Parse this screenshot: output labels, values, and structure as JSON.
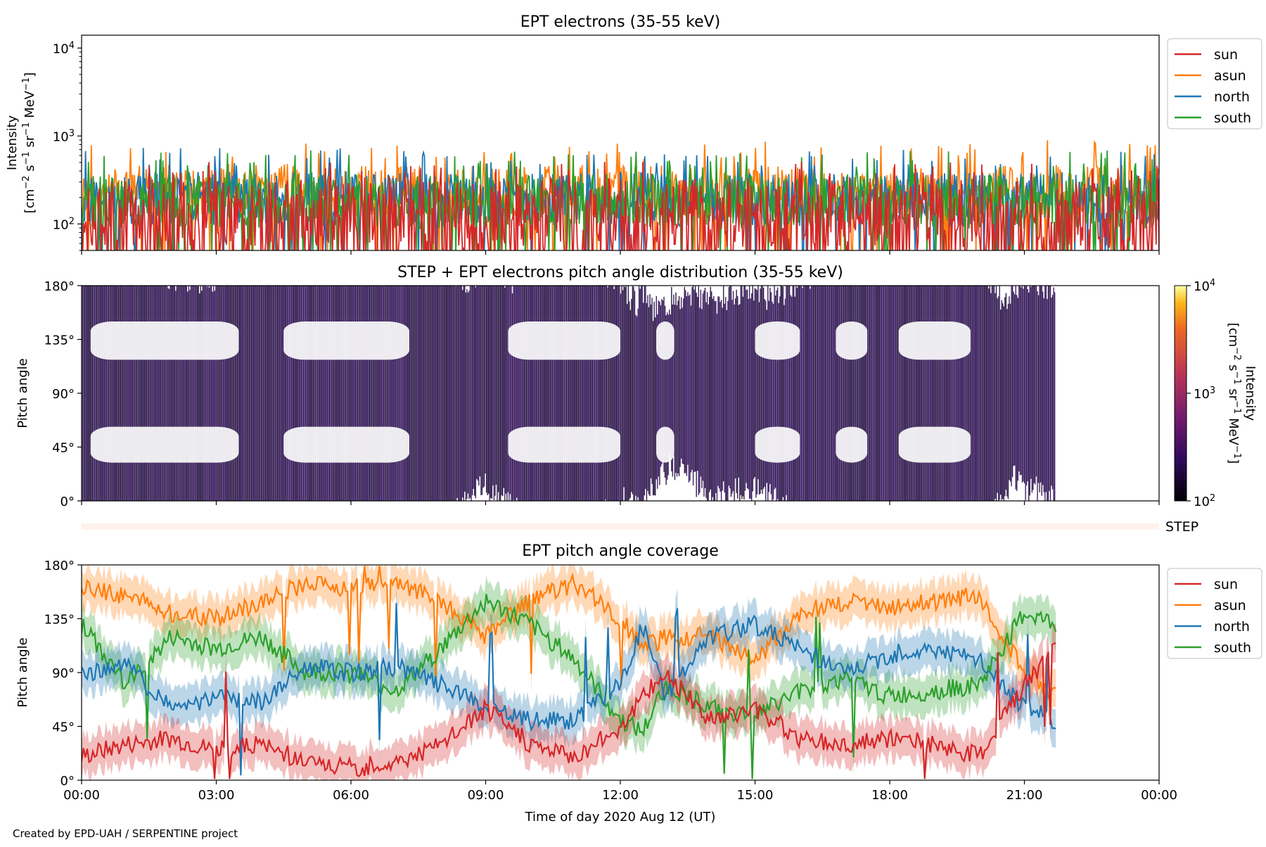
{
  "colors": {
    "sun": "#d62728",
    "asun": "#ff7f0e",
    "north": "#1f77b4",
    "south": "#2ca02c",
    "pad_fill": "#2b0a55",
    "step_bar": "#fff2ec"
  },
  "legend": [
    "sun",
    "asun",
    "north",
    "south"
  ],
  "xlabel": "Time of day 2020 Aug 12 (UT)",
  "x_ticks": [
    "00:00",
    "03:00",
    "06:00",
    "09:00",
    "12:00",
    "15:00",
    "18:00",
    "21:00",
    "00:00"
  ],
  "credit": "Created by EPD-UAH / SERPENTINE project",
  "step_label": "STEP",
  "panel1": {
    "title": "EPT electrons (35-55 keV)",
    "ylabel1": "Intensity",
    "ylabel2_parts": [
      "[cm",
      "−2",
      " s",
      "−1",
      " sr",
      "−1",
      " MeV",
      "−1",
      "]"
    ],
    "y_tick_base": "10",
    "y_tick_exps": [
      "2",
      "3",
      "4"
    ]
  },
  "panel2": {
    "title": "STEP + EPT electrons pitch angle distribution (35-55 keV)",
    "ylabel": "Pitch angle",
    "y_ticks": [
      "0°",
      "45°",
      "90°",
      "135°",
      "180°"
    ],
    "colorbar_label1": "Intensity",
    "colorbar_ticks_base": "10",
    "colorbar_ticks_exps": [
      "2",
      "3",
      "4"
    ]
  },
  "panel3": {
    "title": "EPT pitch angle coverage",
    "ylabel": "Pitch angle",
    "y_ticks": [
      "0°",
      "45°",
      "90°",
      "135°",
      "180°"
    ]
  },
  "chart_data": [
    {
      "type": "line",
      "title": "EPT electrons (35-55 keV)",
      "xlabel": "",
      "ylabel": "Intensity [cm−2 s−1 sr−1 MeV−1]",
      "y_scale": "log",
      "ylim": [
        50,
        14000
      ],
      "xlim_hours": [
        0,
        24
      ],
      "legend_position": "outside-right",
      "grid": false,
      "series": [
        {
          "name": "sun",
          "hours": [
            0,
            2,
            4,
            6,
            8,
            10,
            12,
            14,
            16,
            18,
            20,
            22,
            24
          ],
          "values": [
            140,
            150,
            145,
            150,
            140,
            145,
            150,
            140,
            145,
            150,
            140,
            145,
            140
          ]
        },
        {
          "name": "asun",
          "hours": [
            0,
            2,
            4,
            6,
            8,
            10,
            12,
            14,
            16,
            18,
            20,
            22,
            24
          ],
          "values": [
            240,
            250,
            260,
            250,
            240,
            250,
            245,
            240,
            250,
            255,
            250,
            260,
            250
          ]
        },
        {
          "name": "north",
          "hours": [
            0,
            2,
            4,
            6,
            8,
            10,
            12,
            14,
            16,
            18,
            20,
            22,
            24
          ],
          "values": [
            200,
            210,
            205,
            210,
            200,
            205,
            210,
            200,
            205,
            210,
            200,
            205,
            200
          ]
        },
        {
          "name": "south",
          "hours": [
            0,
            2,
            4,
            6,
            8,
            10,
            12,
            14,
            16,
            18,
            20,
            22,
            24
          ],
          "values": [
            190,
            200,
            195,
            200,
            190,
            195,
            200,
            190,
            195,
            200,
            190,
            195,
            190
          ]
        }
      ]
    },
    {
      "type": "heatmap",
      "title": "STEP + EPT electrons pitch angle distribution (35-55 keV)",
      "ylabel": "Pitch angle",
      "ylim": [
        0,
        180
      ],
      "xlim_hours": [
        0,
        24
      ],
      "colorbar_range": [
        100,
        10000
      ],
      "colorbar_scale": "log",
      "colorbar_label": "Intensity [cm−2 s−1 sr−1 MeV−1]",
      "data_end_hours": 21.7
    },
    {
      "type": "line",
      "title": "EPT pitch angle coverage",
      "xlabel": "Time of day 2020 Aug 12 (UT)",
      "ylabel": "Pitch angle",
      "ylim": [
        0,
        180
      ],
      "xlim_hours": [
        0,
        24
      ],
      "legend_position": "outside-right",
      "series": [
        {
          "name": "sun",
          "hours": [
            0,
            1,
            2,
            3,
            4,
            5,
            6,
            7,
            8,
            9,
            10,
            11,
            12,
            12.5,
            13,
            14,
            15,
            16,
            17,
            18,
            19,
            20,
            21,
            21.7
          ],
          "values": [
            20,
            30,
            35,
            25,
            30,
            15,
            10,
            15,
            30,
            60,
            30,
            20,
            45,
            70,
            90,
            50,
            60,
            35,
            30,
            35,
            30,
            20,
            80,
            110
          ]
        },
        {
          "name": "asun",
          "hours": [
            0,
            1,
            2,
            3,
            4,
            5,
            6,
            7,
            8,
            9,
            10,
            11,
            12,
            12.5,
            13,
            14,
            15,
            16,
            17,
            18,
            19,
            20,
            21,
            21.7
          ],
          "values": [
            160,
            155,
            140,
            135,
            150,
            165,
            160,
            165,
            150,
            120,
            150,
            165,
            135,
            110,
            120,
            120,
            100,
            140,
            150,
            145,
            150,
            155,
            90,
            70
          ]
        },
        {
          "name": "north",
          "hours": [
            0,
            1,
            2,
            3,
            4,
            5,
            6,
            7,
            8,
            9,
            10,
            11,
            12,
            12.5,
            13,
            14,
            15,
            16,
            17,
            18,
            19,
            20,
            21,
            21.7
          ],
          "values": [
            90,
            95,
            60,
            70,
            65,
            95,
            90,
            95,
            80,
            60,
            50,
            50,
            80,
            130,
            70,
            120,
            130,
            110,
            90,
            105,
            110,
            100,
            60,
            50
          ]
        },
        {
          "name": "south",
          "hours": [
            0,
            1,
            2,
            3,
            4,
            5,
            6,
            7,
            8,
            9,
            10,
            11,
            12,
            12.5,
            13,
            14,
            15,
            16,
            17,
            18,
            19,
            20,
            21,
            21.7
          ],
          "values": [
            130,
            80,
            120,
            110,
            120,
            90,
            90,
            75,
            110,
            150,
            130,
            100,
            50,
            40,
            80,
            60,
            55,
            75,
            85,
            70,
            75,
            80,
            140,
            130
          ]
        }
      ]
    }
  ]
}
